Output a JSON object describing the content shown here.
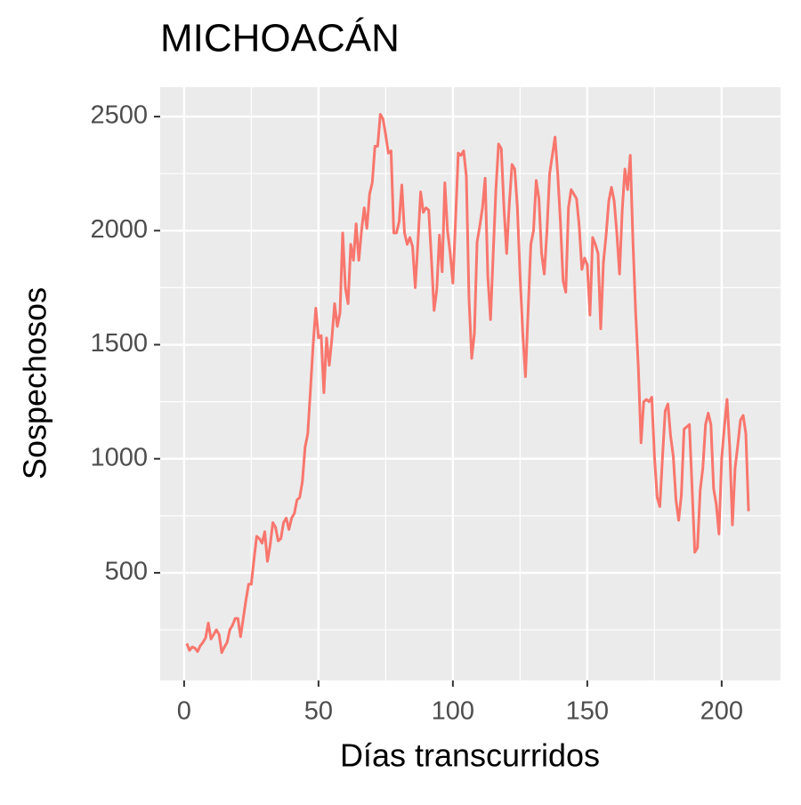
{
  "chart_data": {
    "type": "line",
    "title": "MICHOACÁN",
    "x_label": "Días transcurridos",
    "y_label": "Sospechosos",
    "x": [
      1,
      2,
      3,
      4,
      5,
      6,
      7,
      8,
      9,
      10,
      11,
      12,
      13,
      14,
      15,
      16,
      17,
      18,
      19,
      20,
      21,
      22,
      23,
      24,
      25,
      26,
      27,
      28,
      29,
      30,
      31,
      32,
      33,
      34,
      35,
      36,
      37,
      38,
      39,
      40,
      41,
      42,
      43,
      44,
      45,
      46,
      47,
      48,
      49,
      50,
      51,
      52,
      53,
      54,
      55,
      56,
      57,
      58,
      59,
      60,
      61,
      62,
      63,
      64,
      65,
      66,
      67,
      68,
      69,
      70,
      71,
      72,
      73,
      74,
      75,
      76,
      77,
      78,
      79,
      80,
      81,
      82,
      83,
      84,
      85,
      86,
      87,
      88,
      89,
      90,
      91,
      92,
      93,
      94,
      95,
      96,
      97,
      98,
      99,
      100,
      101,
      102,
      103,
      104,
      105,
      106,
      107,
      108,
      109,
      110,
      111,
      112,
      113,
      114,
      115,
      116,
      117,
      118,
      119,
      120,
      121,
      122,
      123,
      124,
      125,
      126,
      127,
      128,
      129,
      130,
      131,
      132,
      133,
      134,
      135,
      136,
      137,
      138,
      139,
      140,
      141,
      142,
      143,
      144,
      145,
      146,
      147,
      148,
      149,
      150,
      151,
      152,
      153,
      154,
      155,
      156,
      157,
      158,
      159,
      160,
      161,
      162,
      163,
      164,
      165,
      166,
      167,
      168,
      169,
      170,
      171,
      172,
      173,
      174,
      175,
      176,
      177,
      178,
      179,
      180,
      181,
      182,
      183,
      184,
      185,
      186,
      187,
      188,
      189,
      190,
      191,
      192,
      193,
      194,
      195,
      196,
      197,
      198,
      199,
      200,
      201,
      202,
      203,
      204,
      205,
      206,
      207,
      208,
      209,
      210
    ],
    "series": [
      {
        "color": "#f8766d",
        "values": [
          190,
          160,
          175,
          170,
          155,
          180,
          195,
          215,
          280,
          210,
          230,
          250,
          230,
          150,
          175,
          195,
          250,
          270,
          300,
          300,
          220,
          300,
          380,
          450,
          450,
          560,
          660,
          650,
          630,
          680,
          550,
          620,
          720,
          700,
          640,
          650,
          720,
          740,
          690,
          740,
          760,
          820,
          830,
          900,
          1050,
          1110,
          1300,
          1500,
          1660,
          1530,
          1540,
          1290,
          1530,
          1410,
          1530,
          1680,
          1580,
          1640,
          1990,
          1750,
          1680,
          1940,
          1870,
          2030,
          1870,
          2000,
          2100,
          2010,
          2160,
          2210,
          2370,
          2370,
          2510,
          2490,
          2420,
          2340,
          2350,
          1990,
          1990,
          2040,
          2200,
          1990,
          1940,
          1970,
          1930,
          1750,
          1950,
          2170,
          2080,
          2100,
          2090,
          1880,
          1650,
          1740,
          1980,
          1820,
          2210,
          2000,
          1900,
          1770,
          2050,
          2340,
          2330,
          2350,
          2240,
          1700,
          1440,
          1550,
          1950,
          2020,
          2100,
          2230,
          1800,
          1610,
          1900,
          2180,
          2380,
          2360,
          2100,
          1900,
          2120,
          2290,
          2270,
          2100,
          1800,
          1550,
          1360,
          1650,
          1940,
          2000,
          2220,
          2140,
          1900,
          1810,
          2000,
          2250,
          2330,
          2410,
          2250,
          2040,
          1780,
          1730,
          2100,
          2180,
          2160,
          2140,
          2020,
          1830,
          1880,
          1850,
          1630,
          1970,
          1940,
          1900,
          1570,
          1860,
          1980,
          2130,
          2190,
          2130,
          1990,
          1810,
          2090,
          2270,
          2180,
          2330,
          1950,
          1640,
          1400,
          1070,
          1250,
          1260,
          1250,
          1270,
          1010,
          830,
          790,
          1010,
          1210,
          1240,
          1100,
          1010,
          820,
          730,
          840,
          1130,
          1140,
          1150,
          870,
          590,
          610,
          860,
          960,
          1150,
          1200,
          1150,
          870,
          800,
          670,
          1000,
          1140,
          1260,
          1050,
          710,
          960,
          1060,
          1170,
          1190,
          1110,
          770
        ]
      }
    ],
    "xlim": [
      -8.9,
      221.9
    ],
    "ylim": [
      28,
      2629
    ],
    "xticks": [
      0,
      50,
      100,
      150,
      200
    ],
    "yticks": [
      500,
      1000,
      1500,
      2000,
      2500
    ],
    "grid": true
  }
}
